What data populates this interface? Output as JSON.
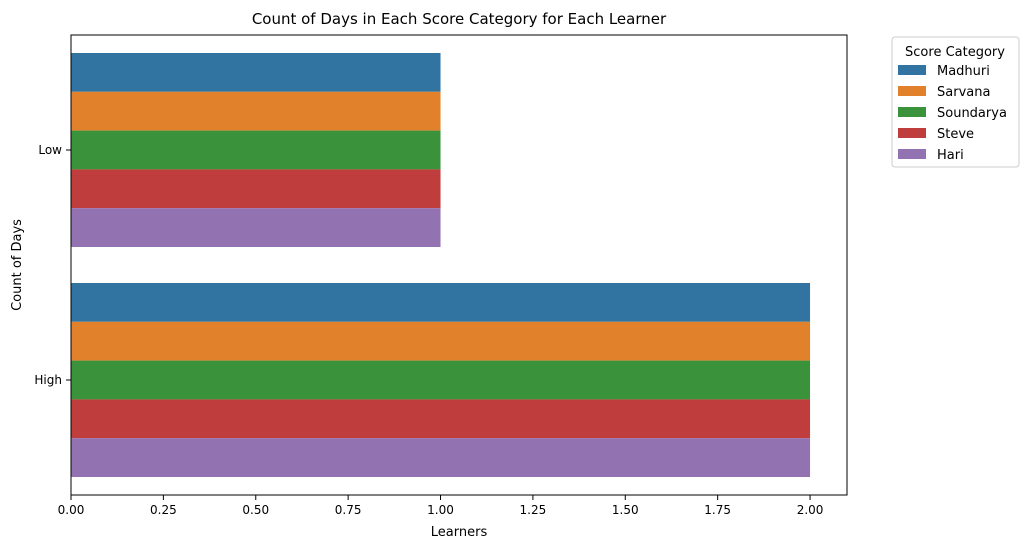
{
  "chart_data": {
    "type": "bar",
    "orientation": "horizontal",
    "title": "Count of Days in Each Score Category for Each Learner",
    "xlabel": "Learners",
    "ylabel": "Count of Days",
    "xlim": [
      0,
      2.1
    ],
    "xticks": [
      "0.00",
      "0.25",
      "0.50",
      "0.75",
      "1.00",
      "1.25",
      "1.50",
      "1.75",
      "2.00"
    ],
    "xtick_values": [
      0,
      0.25,
      0.5,
      0.75,
      1.0,
      1.25,
      1.5,
      1.75,
      2.0
    ],
    "categories": [
      "Low",
      "High"
    ],
    "legend": {
      "title": "Score Category",
      "placement": "outside-right-top"
    },
    "grid": false,
    "series": [
      {
        "name": "Madhuri",
        "color": "#3274a1",
        "values": [
          1,
          2
        ]
      },
      {
        "name": "Sarvana",
        "color": "#e1812c",
        "values": [
          1,
          2
        ]
      },
      {
        "name": "Soundarya",
        "color": "#3a923a",
        "values": [
          1,
          2
        ]
      },
      {
        "name": "Steve",
        "color": "#c03d3e",
        "values": [
          1,
          2
        ]
      },
      {
        "name": "Hari",
        "color": "#9372b2",
        "values": [
          1,
          2
        ]
      }
    ]
  }
}
